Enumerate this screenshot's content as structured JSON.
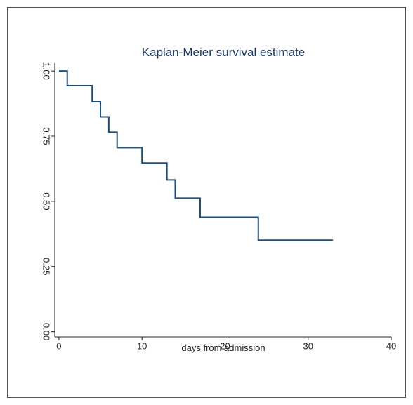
{
  "chart_data": {
    "type": "step",
    "title": "Kaplan-Meier survival estimate",
    "xlabel": "days from admission",
    "x": [
      0,
      1,
      4,
      5,
      6,
      7,
      10,
      13,
      14,
      17,
      24,
      33
    ],
    "series": [
      {
        "color": "#1f4e79",
        "values": [
          1,
          0.944,
          0.882,
          0.824,
          0.765,
          0.706,
          0.647,
          0.582,
          0.512,
          0.439,
          0.351,
          0.351
        ]
      }
    ],
    "xlim": [
      -0.5,
      40
    ],
    "xticks": [
      0,
      10,
      20,
      30,
      40
    ],
    "ylim": [
      -0.02,
      1.03
    ],
    "yticks": [
      {
        "value": 0,
        "label": "0.00"
      },
      0.25,
      {
        "value": 0.5,
        "label": "0.50"
      },
      0.75,
      {
        "value": 1,
        "label": "1.00"
      }
    ]
  }
}
